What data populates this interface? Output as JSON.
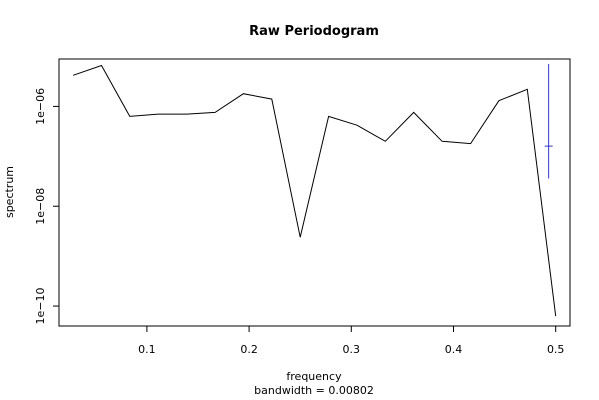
{
  "chart_data": {
    "type": "line",
    "title": "Raw Periodogram",
    "xlabel": "frequency",
    "xlabel_sub": "bandwidth = 0.00802",
    "ylabel": "spectrum",
    "y_scale": "log",
    "xlim": [
      0.014,
      0.514
    ],
    "ylim_log10": [
      -10.4,
      -5.05
    ],
    "x_ticks": [
      0.1,
      0.2,
      0.3,
      0.4,
      0.5
    ],
    "x_tick_labels": [
      "0.1",
      "0.2",
      "0.3",
      "0.4",
      "0.5"
    ],
    "y_ticks_log10": [
      -10,
      -8,
      -6
    ],
    "y_tick_labels": [
      "1e−10",
      "1e−08",
      "1e−06"
    ],
    "series": [
      {
        "color": "#000000",
        "x": [
          0.0278,
          0.0556,
          0.0833,
          0.1111,
          0.1389,
          0.1667,
          0.1944,
          0.2222,
          0.25,
          0.2778,
          0.3056,
          0.3333,
          0.3611,
          0.3889,
          0.4167,
          0.4444,
          0.4722,
          0.5
        ],
        "y": [
          4.2e-06,
          6.6e-06,
          6.3e-07,
          7e-07,
          7e-07,
          7.6e-07,
          1.8e-06,
          1.4e-06,
          2.4e-09,
          6.3e-07,
          4.2e-07,
          2e-07,
          7.6e-07,
          2e-07,
          1.8e-07,
          1.3e-06,
          2.2e-06,
          6.3e-11
        ]
      }
    ],
    "confidence_bar": {
      "color": "#3333cc",
      "x": 0.4931,
      "center": 1.6e-07,
      "lower": 3.6e-08,
      "upper": 7.1e-06
    }
  }
}
